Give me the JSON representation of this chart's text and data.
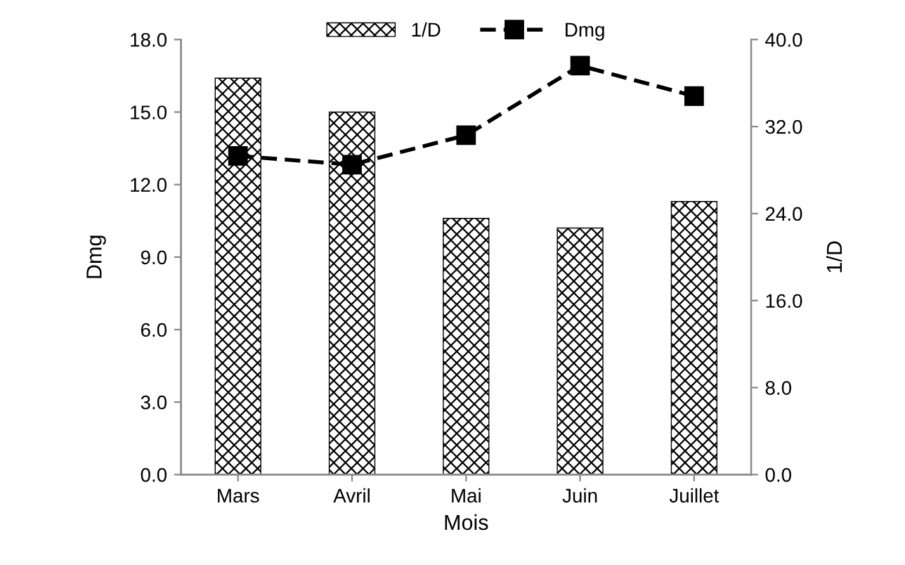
{
  "chart_data": {
    "type": "bar",
    "xlabel": "Mois",
    "ylabel": "Dmg",
    "y2label": "1/D",
    "categories": [
      "Mars",
      "Avril",
      "Mai",
      "Juin",
      "Juillet"
    ],
    "series": [
      {
        "name": "1/D",
        "color": "#000000",
        "values": [
          16.4,
          15.0,
          10.6,
          10.2,
          11.3
        ]
      },
      {
        "name": "Dmg",
        "type": "line",
        "axis": "y2",
        "color": "#000000",
        "marker": "square",
        "line_style": "dashed",
        "values": [
          29.3,
          28.5,
          31.2,
          37.6,
          34.8
        ]
      }
    ],
    "ylim": [
      0,
      18
    ],
    "yticks": [
      {
        "value": 0,
        "label": "0.0"
      },
      {
        "value": 3,
        "label": "3.0"
      },
      {
        "value": 6,
        "label": "6.0"
      },
      {
        "value": 9,
        "label": "9.0"
      },
      {
        "value": 12,
        "label": "12.0"
      },
      {
        "value": 15,
        "label": "15.0"
      },
      {
        "value": 18,
        "label": "18.0"
      }
    ],
    "y2lim": [
      0,
      40
    ],
    "y2ticks": [
      {
        "value": 0,
        "label": "0.0"
      },
      {
        "value": 8,
        "label": "8.0"
      },
      {
        "value": 16,
        "label": "16.0"
      },
      {
        "value": 24,
        "label": "24.0"
      },
      {
        "value": 32,
        "label": "32.0"
      },
      {
        "value": 40,
        "label": "40.0"
      }
    ],
    "legend": "top",
    "grid": false
  }
}
